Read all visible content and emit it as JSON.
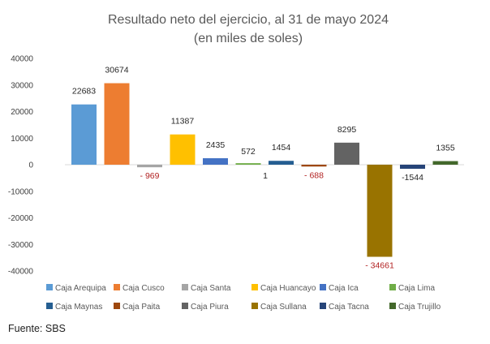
{
  "source": "Fuente: SBS",
  "chart_data": {
    "type": "bar",
    "title": "Resultado neto del ejercicio, al 31 de mayo 2024",
    "subtitle": "(en miles de soles)",
    "ylim": [
      -40000,
      40000
    ],
    "yticks": [
      40000,
      30000,
      20000,
      10000,
      0,
      -10000,
      -20000,
      -30000,
      -40000
    ],
    "grid": false,
    "legend_position": "bottom",
    "series": [
      {
        "name": "Caja Arequipa",
        "value": 22683,
        "label": "22683",
        "color": "#5B9BD5"
      },
      {
        "name": "Caja Cusco",
        "value": 30674,
        "label": "30674",
        "color": "#ED7D31"
      },
      {
        "name": "Caja Santa",
        "value": -969,
        "label": "- 969",
        "color": "#A5A5A5"
      },
      {
        "name": "Caja Huancayo",
        "value": 11387,
        "label": "11387",
        "color": "#FFC000"
      },
      {
        "name": "Caja Ica",
        "value": 2435,
        "label": "2435",
        "color": "#4472C4"
      },
      {
        "name": "Caja Lima",
        "value": 572,
        "label": "572",
        "color": "#70AD47"
      },
      {
        "name": "Caja Maynas",
        "value": 1454,
        "label": "1454",
        "color": "#255E91"
      },
      {
        "name": "Caja Paita",
        "value": -688,
        "label": "- 688",
        "color": "#9E480E"
      },
      {
        "name": "Caja Piura",
        "value": 8295,
        "label": "8295",
        "color": "#636363"
      },
      {
        "name": "Caja Sullana",
        "value": -34661,
        "label": "- 34661",
        "color": "#997300"
      },
      {
        "name": "Caja Tacna",
        "value": -1544,
        "label": "-1544",
        "color": "#264478"
      },
      {
        "name": "Caja Trujillo",
        "value": 1355,
        "label": "1355",
        "color": "#43682B"
      }
    ],
    "extra_labels": [
      "1"
    ]
  }
}
